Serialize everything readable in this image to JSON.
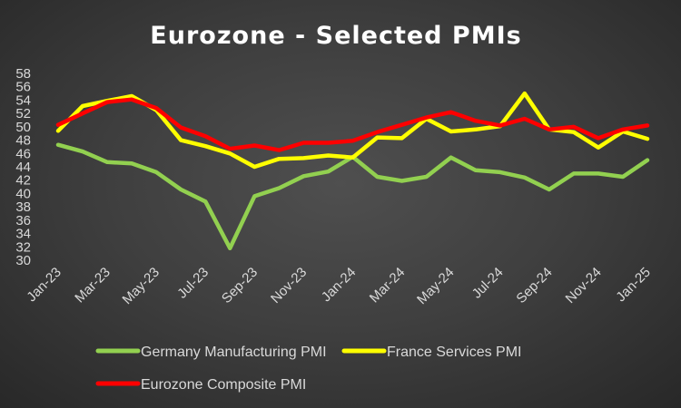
{
  "chart_data": {
    "type": "line",
    "title": "Eurozone - Selected PMIs",
    "xlabel": "",
    "ylabel": "",
    "ylim": [
      30,
      58
    ],
    "ytick_step": 2,
    "grid": false,
    "legend_position": "bottom",
    "x": [
      "Jan-23",
      "Feb-23",
      "Mar-23",
      "Apr-23",
      "May-23",
      "Jun-23",
      "Jul-23",
      "Aug-23",
      "Sep-23",
      "Oct-23",
      "Nov-23",
      "Dec-23",
      "Jan-24",
      "Feb-24",
      "Mar-24",
      "Apr-24",
      "May-24",
      "Jun-24",
      "Jul-24",
      "Aug-24",
      "Sep-24",
      "Oct-24",
      "Nov-24",
      "Dec-24",
      "Jan-25"
    ],
    "x_tick_labels": [
      "Jan-23",
      "Mar-23",
      "May-23",
      "Jul-23",
      "Sep-23",
      "Nov-23",
      "Jan-24",
      "Mar-24",
      "May-24",
      "Jul-24",
      "Sep-24",
      "Nov-24",
      "Jan-25"
    ],
    "series": [
      {
        "name": "Germany Manufacturing PMI",
        "color": "#92d050",
        "values": [
          47.3,
          46.3,
          44.7,
          44.5,
          43.2,
          40.6,
          38.8,
          31.8,
          39.6,
          40.8,
          42.6,
          43.3,
          45.5,
          42.5,
          41.9,
          42.5,
          45.4,
          43.5,
          43.2,
          42.4,
          40.6,
          43.0,
          43.0,
          42.5,
          45.0
        ]
      },
      {
        "name": "France Services PMI",
        "color": "#ffff00",
        "values": [
          49.4,
          53.1,
          53.9,
          54.6,
          52.5,
          48.0,
          47.1,
          46.0,
          44.0,
          45.2,
          45.3,
          45.7,
          45.4,
          48.4,
          48.3,
          51.2,
          49.3,
          49.6,
          50.1,
          55.0,
          49.6,
          49.2,
          46.9,
          49.3,
          48.2
        ]
      },
      {
        "name": "Eurozone Composite PMI",
        "color": "#ff0000",
        "values": [
          50.3,
          52.0,
          53.7,
          54.1,
          52.8,
          49.9,
          48.6,
          46.7,
          47.2,
          46.5,
          47.6,
          47.6,
          47.9,
          49.2,
          50.3,
          51.4,
          52.2,
          50.9,
          50.2,
          51.2,
          49.6,
          50.0,
          48.3,
          49.6,
          50.2
        ]
      }
    ]
  }
}
